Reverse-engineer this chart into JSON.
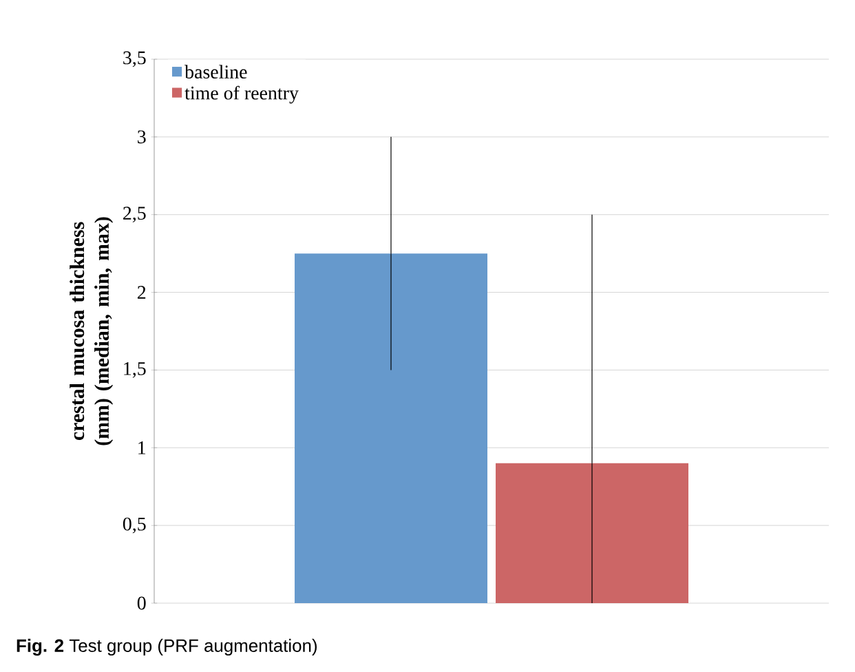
{
  "chart_data": {
    "type": "bar",
    "ylabel": "crestal mucosa thickness (mm) (median, min, max)",
    "categories": [
      null
    ],
    "series": [
      {
        "name": "baseline",
        "color": "#6699cc",
        "values": [
          2.25
        ],
        "errors": [
          [
            1.5,
            3
          ]
        ]
      },
      {
        "name": "time of reentry",
        "color": "#cc6666",
        "values": [
          0.9
        ],
        "errors": [
          [
            0,
            2.5
          ]
        ]
      }
    ],
    "ylim": [
      0,
      3.5
    ],
    "yticks": [
      0,
      {
        "value": 0.5,
        "label": "0,5"
      },
      1,
      {
        "value": 1.5,
        "label": "1,5"
      },
      2,
      {
        "value": 2.5,
        "label": "2,5"
      },
      3,
      {
        "value": 3.5,
        "label": "3,5"
      }
    ],
    "grid": "y",
    "legend": "top left",
    "annotations": [
      "**Fig. 2** Test group (PRF augmentation)"
    ]
  }
}
